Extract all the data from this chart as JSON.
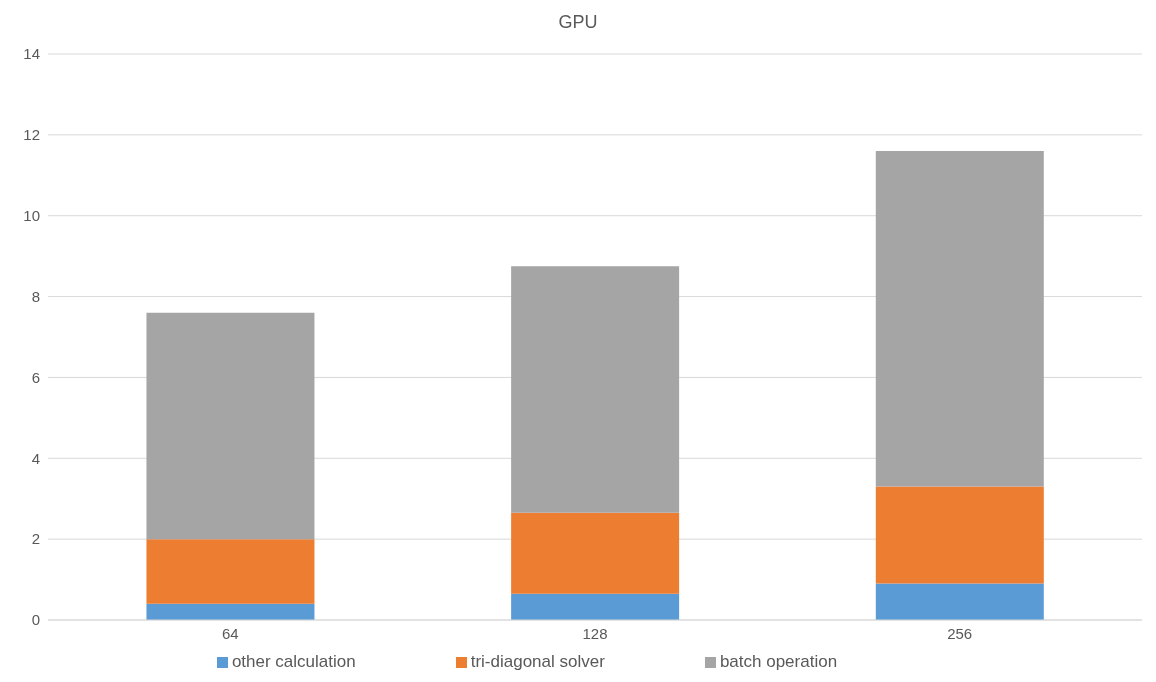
{
  "chart_data": {
    "type": "bar",
    "title": "GPU",
    "categories": [
      "64",
      "128",
      "256"
    ],
    "stacked": true,
    "series": [
      {
        "name": "other calculation",
        "color": "#5b9bd5",
        "values": [
          0.4,
          0.65,
          0.9
        ]
      },
      {
        "name": "tri-diagonal solver",
        "color": "#ed7d31",
        "values": [
          1.6,
          2.0,
          2.4
        ]
      },
      {
        "name": "batch operation",
        "color": "#a5a5a5",
        "values": [
          5.6,
          6.1,
          8.3
        ]
      }
    ],
    "ylim": [
      0,
      14
    ],
    "yticks": [
      0,
      2,
      4,
      6,
      8,
      10,
      12,
      14
    ],
    "grid": "y",
    "legend": "bottom"
  }
}
